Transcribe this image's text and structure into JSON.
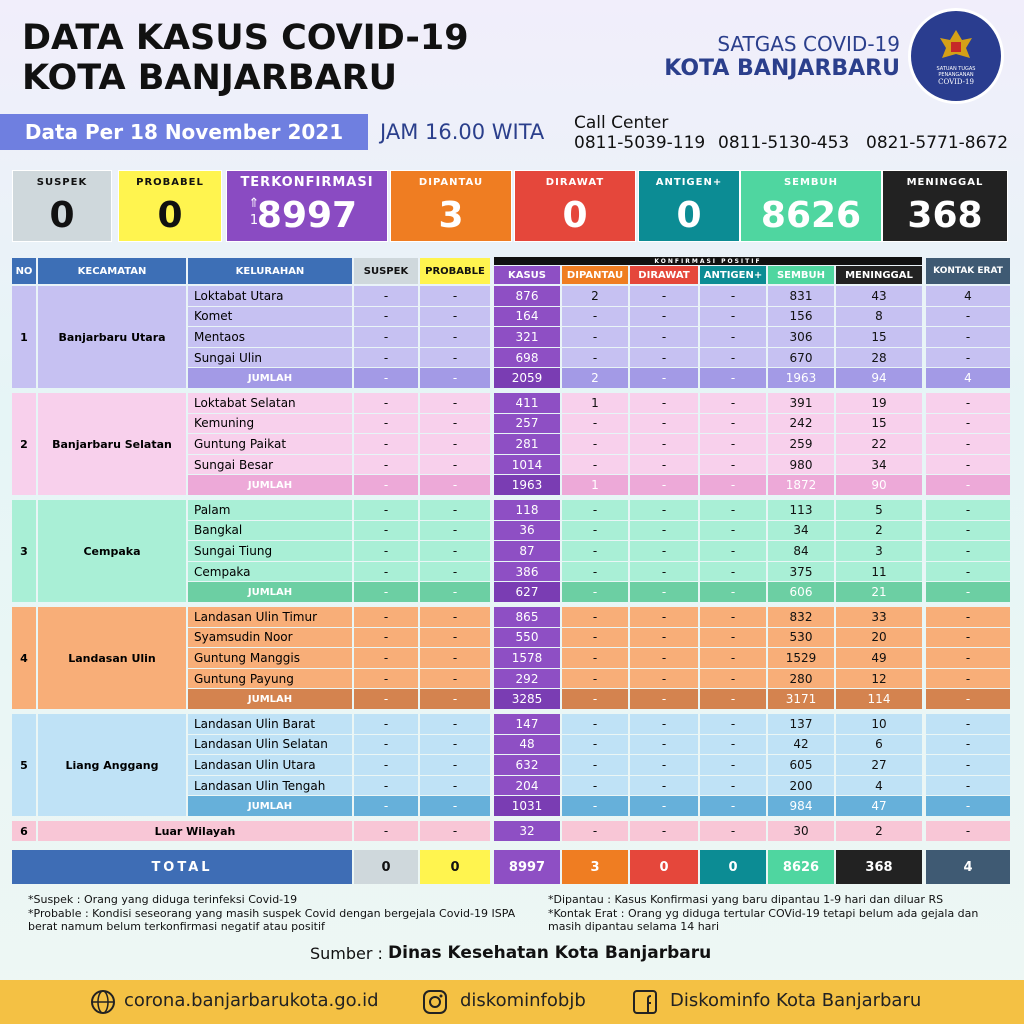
{
  "header": {
    "title_line1": "DATA KASUS COVID-19",
    "title_line2": "KOTA BANJARBARU",
    "org_line1": "SATGAS COVID-19",
    "org_line2": "KOTA BANJARBARU",
    "logo_line1": "SATUAN TUGAS",
    "logo_line2": "PENANGANAN",
    "logo_line3": "COVID-19",
    "date": "Data Per 18 November 2021",
    "time": "JAM 16.00 WITA",
    "call_center_label": "Call Center",
    "call_center_numbers": [
      "0811-5039-119",
      "0811-5130-453",
      "0821-5771-8672"
    ]
  },
  "summary": [
    {
      "label": "SUSPEK",
      "value": 0
    },
    {
      "label": "PROBABEL",
      "value": 0
    },
    {
      "label": "TERKONFIRMASI",
      "value": 8997,
      "increase": 1
    },
    {
      "label": "DIPANTAU",
      "value": 3
    },
    {
      "label": "DIRAWAT",
      "value": 0
    },
    {
      "label": "ANTIGEN+",
      "value": 0
    },
    {
      "label": "SEMBUH",
      "value": 8626
    },
    {
      "label": "MENINGGAL",
      "value": 368
    }
  ],
  "table": {
    "columns": [
      "NO",
      "KECAMATAN",
      "KELURAHAN",
      "SUSPEK",
      "PROBABLE",
      "KASUS",
      "DIPANTAU",
      "DIRAWAT",
      "ANTIGEN+",
      "SEMBUH",
      "MENINGGAL",
      "KONTAK ERAT"
    ],
    "group_header": "KONFIRMASI POSITIF",
    "total_label": "JUMLAH",
    "districts": [
      {
        "no": 1,
        "name": "Banjarbaru Utara",
        "rows": [
          [
            "Loktabat Utara",
            "-",
            "-",
            876,
            2,
            "-",
            "-",
            831,
            43,
            4
          ],
          [
            "Komet",
            "-",
            "-",
            164,
            "-",
            "-",
            "-",
            156,
            8,
            "-"
          ],
          [
            "Mentaos",
            "-",
            "-",
            321,
            "-",
            "-",
            "-",
            306,
            15,
            "-"
          ],
          [
            "Sungai Ulin",
            "-",
            "-",
            698,
            "-",
            "-",
            "-",
            670,
            28,
            "-"
          ]
        ],
        "total": [
          "-",
          "-",
          2059,
          2,
          "-",
          "-",
          1963,
          94,
          4
        ]
      },
      {
        "no": 2,
        "name": "Banjarbaru Selatan",
        "rows": [
          [
            "Loktabat Selatan",
            "-",
            "-",
            411,
            1,
            "-",
            "-",
            391,
            19,
            "-"
          ],
          [
            "Kemuning",
            "-",
            "-",
            257,
            "-",
            "-",
            "-",
            242,
            15,
            "-"
          ],
          [
            "Guntung Paikat",
            "-",
            "-",
            281,
            "-",
            "-",
            "-",
            259,
            22,
            "-"
          ],
          [
            "Sungai Besar",
            "-",
            "-",
            1014,
            "-",
            "-",
            "-",
            980,
            34,
            "-"
          ]
        ],
        "total": [
          "-",
          "-",
          1963,
          1,
          "-",
          "-",
          1872,
          90,
          "-"
        ]
      },
      {
        "no": 3,
        "name": "Cempaka",
        "rows": [
          [
            "Palam",
            "-",
            "-",
            118,
            "-",
            "-",
            "-",
            113,
            5,
            "-"
          ],
          [
            "Bangkal",
            "-",
            "-",
            36,
            "-",
            "-",
            "-",
            34,
            2,
            "-"
          ],
          [
            "Sungai Tiung",
            "-",
            "-",
            87,
            "-",
            "-",
            "-",
            84,
            3,
            "-"
          ],
          [
            "Cempaka",
            "-",
            "-",
            386,
            "-",
            "-",
            "-",
            375,
            11,
            "-"
          ]
        ],
        "total": [
          "-",
          "-",
          627,
          "-",
          "-",
          "-",
          606,
          21,
          "-"
        ]
      },
      {
        "no": 4,
        "name": "Landasan Ulin",
        "rows": [
          [
            "Landasan Ulin Timur",
            "-",
            "-",
            865,
            "-",
            "-",
            "-",
            832,
            33,
            "-"
          ],
          [
            "Syamsudin Noor",
            "-",
            "-",
            550,
            "-",
            "-",
            "-",
            530,
            20,
            "-"
          ],
          [
            "Guntung Manggis",
            "-",
            "-",
            1578,
            "-",
            "-",
            "-",
            1529,
            49,
            "-"
          ],
          [
            "Guntung Payung",
            "-",
            "-",
            292,
            "-",
            "-",
            "-",
            280,
            12,
            "-"
          ]
        ],
        "total": [
          "-",
          "-",
          3285,
          "-",
          "-",
          "-",
          3171,
          114,
          "-"
        ]
      },
      {
        "no": 5,
        "name": "Liang Anggang",
        "rows": [
          [
            "Landasan Ulin Barat",
            "-",
            "-",
            147,
            "-",
            "-",
            "-",
            137,
            10,
            "-"
          ],
          [
            "Landasan Ulin Selatan",
            "-",
            "-",
            48,
            "-",
            "-",
            "-",
            42,
            6,
            "-"
          ],
          [
            "Landasan Ulin Utara",
            "-",
            "-",
            632,
            "-",
            "-",
            "-",
            605,
            27,
            "-"
          ],
          [
            "Landasan Ulin Tengah",
            "-",
            "-",
            204,
            "-",
            "-",
            "-",
            200,
            4,
            "-"
          ]
        ],
        "total": [
          "-",
          "-",
          1031,
          "-",
          "-",
          "-",
          984,
          47,
          "-"
        ]
      }
    ],
    "outside": {
      "no": 6,
      "name": "Luar Wilayah",
      "values": [
        "-",
        "-",
        32,
        "-",
        "-",
        "-",
        30,
        2,
        "-"
      ]
    },
    "grand_total": {
      "label": "TOTAL",
      "values": [
        0,
        0,
        8997,
        3,
        0,
        0,
        8626,
        368,
        4
      ]
    }
  },
  "notes": {
    "suspek": "*Suspek : Orang yang diduga terinfeksi Covid-19",
    "probable": "*Probable : Kondisi seseorang yang masih suspek Covid dengan bergejala Covid-19 ISPA berat namum belum terkonfirmasi negatif atau positif",
    "dipantau": "*Dipantau : Kasus Konfirmasi yang baru dipantau 1-9 hari dan diluar RS",
    "kontak_erat": "*Kontak Erat : Orang yg diduga tertular COVid-19 tetapi belum ada gejala dan masih dipantau selama 14 hari"
  },
  "source": {
    "label": "Sumber :",
    "name": "Dinas Kesehatan Kota Banjarbaru"
  },
  "footer": {
    "website": "corona.banjarbarukota.go.id",
    "instagram": "diskominfobjb",
    "facebook": "Diskominfo Kota Banjarbaru"
  }
}
